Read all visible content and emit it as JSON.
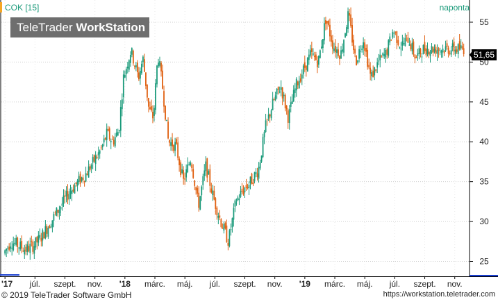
{
  "header": {
    "symbol_label": "COK [15]",
    "period_label": "naponta",
    "watermark_light": "TeleTrader ",
    "watermark_bold": "WorkStation"
  },
  "footer": {
    "copyright": "© 2019 TeleTrader Software GmbH",
    "url": "https://workstation.teletrader.com"
  },
  "colors": {
    "up_candle": "#1a9a7a",
    "down_candle": "#e06010",
    "accent": "#f5a623",
    "last_price_bg": "#000000",
    "watermark_bg": "#6e6e6e"
  },
  "chart_data": {
    "type": "candlestick",
    "symbol": "COK [15]",
    "interval": "naponta",
    "last_value": "51,65",
    "ylim": [
      24,
      57
    ],
    "y_ticks": [
      25,
      30,
      35,
      40,
      45,
      50,
      55
    ],
    "x_tick_labels": [
      "'17",
      "júl.",
      "szept.",
      "nov.",
      "'18",
      "márc.",
      "máj.",
      "júl.",
      "szept.",
      "nov.",
      "'19",
      "márc.",
      "máj.",
      "júl.",
      "szept.",
      "nov."
    ],
    "x_tick_index": [
      0,
      1,
      2,
      3,
      4,
      5,
      6,
      7,
      8,
      9,
      10,
      11,
      12,
      13,
      14,
      15
    ],
    "x_tick_bold": [
      "'17",
      "'18",
      "'19"
    ],
    "path_months": [
      0,
      0.5,
      1,
      1.5,
      2,
      2.5,
      3,
      3.5,
      4,
      4.5,
      5,
      5.5,
      6,
      6.5,
      6.9,
      7.3,
      7.7,
      8,
      8.5,
      9,
      9.3,
      9.7,
      10,
      10.3,
      10.6,
      11,
      11.5,
      12,
      12.5,
      13,
      13.5,
      14,
      14.5,
      15,
      15.5,
      16,
      16.5,
      17,
      17.5,
      18,
      18.5,
      19,
      19.5,
      20,
      20.5,
      21,
      21.5,
      22,
      22.5,
      23,
      23.5,
      24,
      24.5,
      25,
      25.5,
      26,
      26.5,
      27,
      27.5,
      28,
      28.5,
      29,
      29.5,
      30,
      30.5,
      30.9
    ],
    "path_close": [
      26,
      27.5,
      27,
      26.5,
      27,
      28,
      29.5,
      31,
      32.5,
      34,
      35,
      36,
      37.5,
      39,
      41,
      40,
      41.5,
      48,
      51.5,
      48,
      50.5,
      44,
      43,
      51,
      47,
      40,
      39.5,
      35,
      38,
      32,
      37,
      33,
      30,
      27.5,
      32.5,
      34,
      35,
      36.5,
      42,
      45,
      47,
      43,
      47,
      49,
      51,
      50,
      55.5,
      52,
      51,
      56,
      50,
      53,
      48,
      50,
      51,
      54,
      52,
      53,
      50.5,
      51.65,
      51.65,
      51.65,
      51.65,
      51.65,
      51.65,
      51.65
    ]
  }
}
